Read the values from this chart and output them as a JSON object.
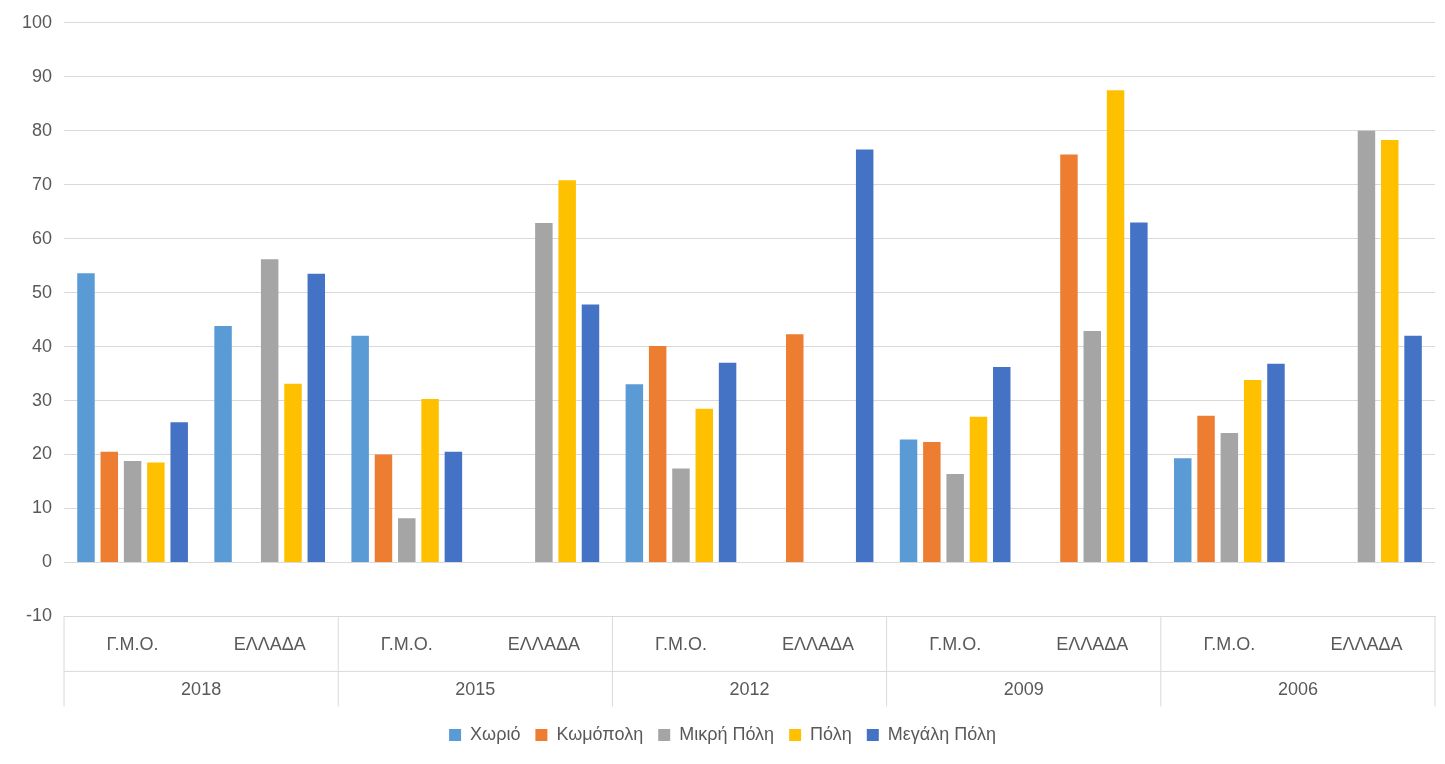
{
  "chart_data": {
    "type": "bar",
    "categories": [
      "Γ.Μ.Ο.",
      "ΕΛΛΑΔΑ",
      "Γ.Μ.Ο.",
      "ΕΛΛΑΔΑ",
      "Γ.Μ.Ο.",
      "ΕΛΛΑΔΑ",
      "Γ.Μ.Ο.",
      "ΕΛΛΑΔΑ",
      "Γ.Μ.Ο.",
      "ΕΛΛΑΔΑ"
    ],
    "annotations": [
      "2018",
      "2015",
      "2012",
      "2009",
      "2006"
    ],
    "series": [
      {
        "name": "Χωριό",
        "color": "#5b9bd5",
        "values": [
          53.6,
          43.8,
          42,
          null,
          33,
          null,
          22.8,
          null,
          19.3,
          null
        ]
      },
      {
        "name": "Κωμόπολη",
        "color": "#ed7d31",
        "values": [
          20.5,
          null,
          20,
          null,
          40.1,
          42.3,
          22.3,
          75.6,
          27.2,
          null
        ]
      },
      {
        "name": "Μικρή Πόλη",
        "color": "#a5a5a5",
        "values": [
          18.8,
          56.2,
          8.2,
          62.9,
          17.4,
          null,
          16.4,
          42.9,
          24,
          80
        ]
      },
      {
        "name": "Πόλη",
        "color": "#ffc000",
        "values": [
          18.5,
          33.1,
          30.3,
          70.8,
          28.5,
          null,
          27,
          87.5,
          33.8,
          78.3
        ]
      },
      {
        "name": "Μεγάλη Πόλη",
        "color": "#4472c4",
        "values": [
          26,
          53.5,
          20.5,
          47.8,
          37,
          76.5,
          36.2,
          63,
          36.8,
          42
        ]
      }
    ],
    "ylim": [
      -10,
      100
    ],
    "yticks": [
      -10,
      0,
      10,
      20,
      30,
      40,
      50,
      60,
      70,
      80,
      90,
      100
    ],
    "grid": "y",
    "legend": "bottom"
  }
}
